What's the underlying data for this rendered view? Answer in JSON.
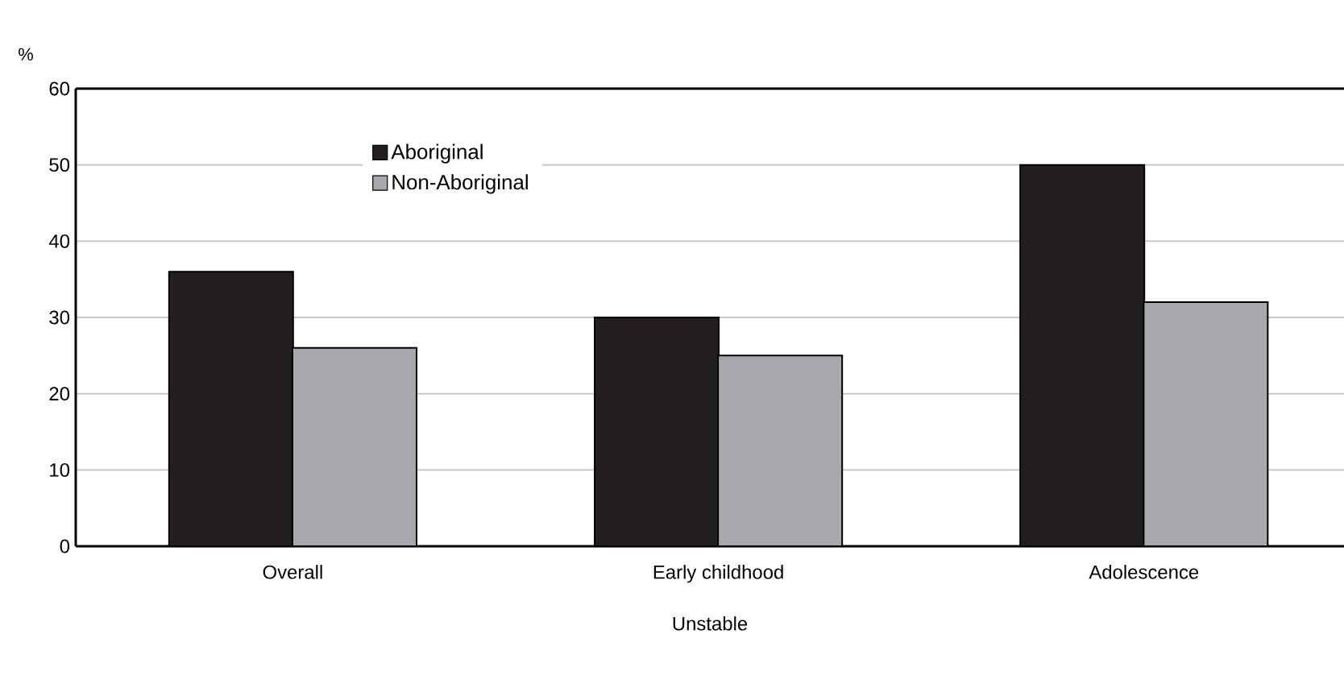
{
  "chart_data": {
    "type": "bar",
    "ylabel": "%",
    "xlabel": "Unstable",
    "categories": [
      "Overall",
      "Early childhood",
      "Adolescence"
    ],
    "series": [
      {
        "name": "Aboriginal",
        "color": "#231f20",
        "values": [
          36,
          30,
          50
        ]
      },
      {
        "name": "Non-Aboriginal",
        "color": "#a6a8ab",
        "values": [
          26,
          25,
          32
        ]
      }
    ],
    "ylim": [
      0,
      60
    ],
    "yticks": [
      0,
      10,
      20,
      30,
      40,
      50,
      60
    ],
    "grid": "y",
    "legend": "top left"
  }
}
